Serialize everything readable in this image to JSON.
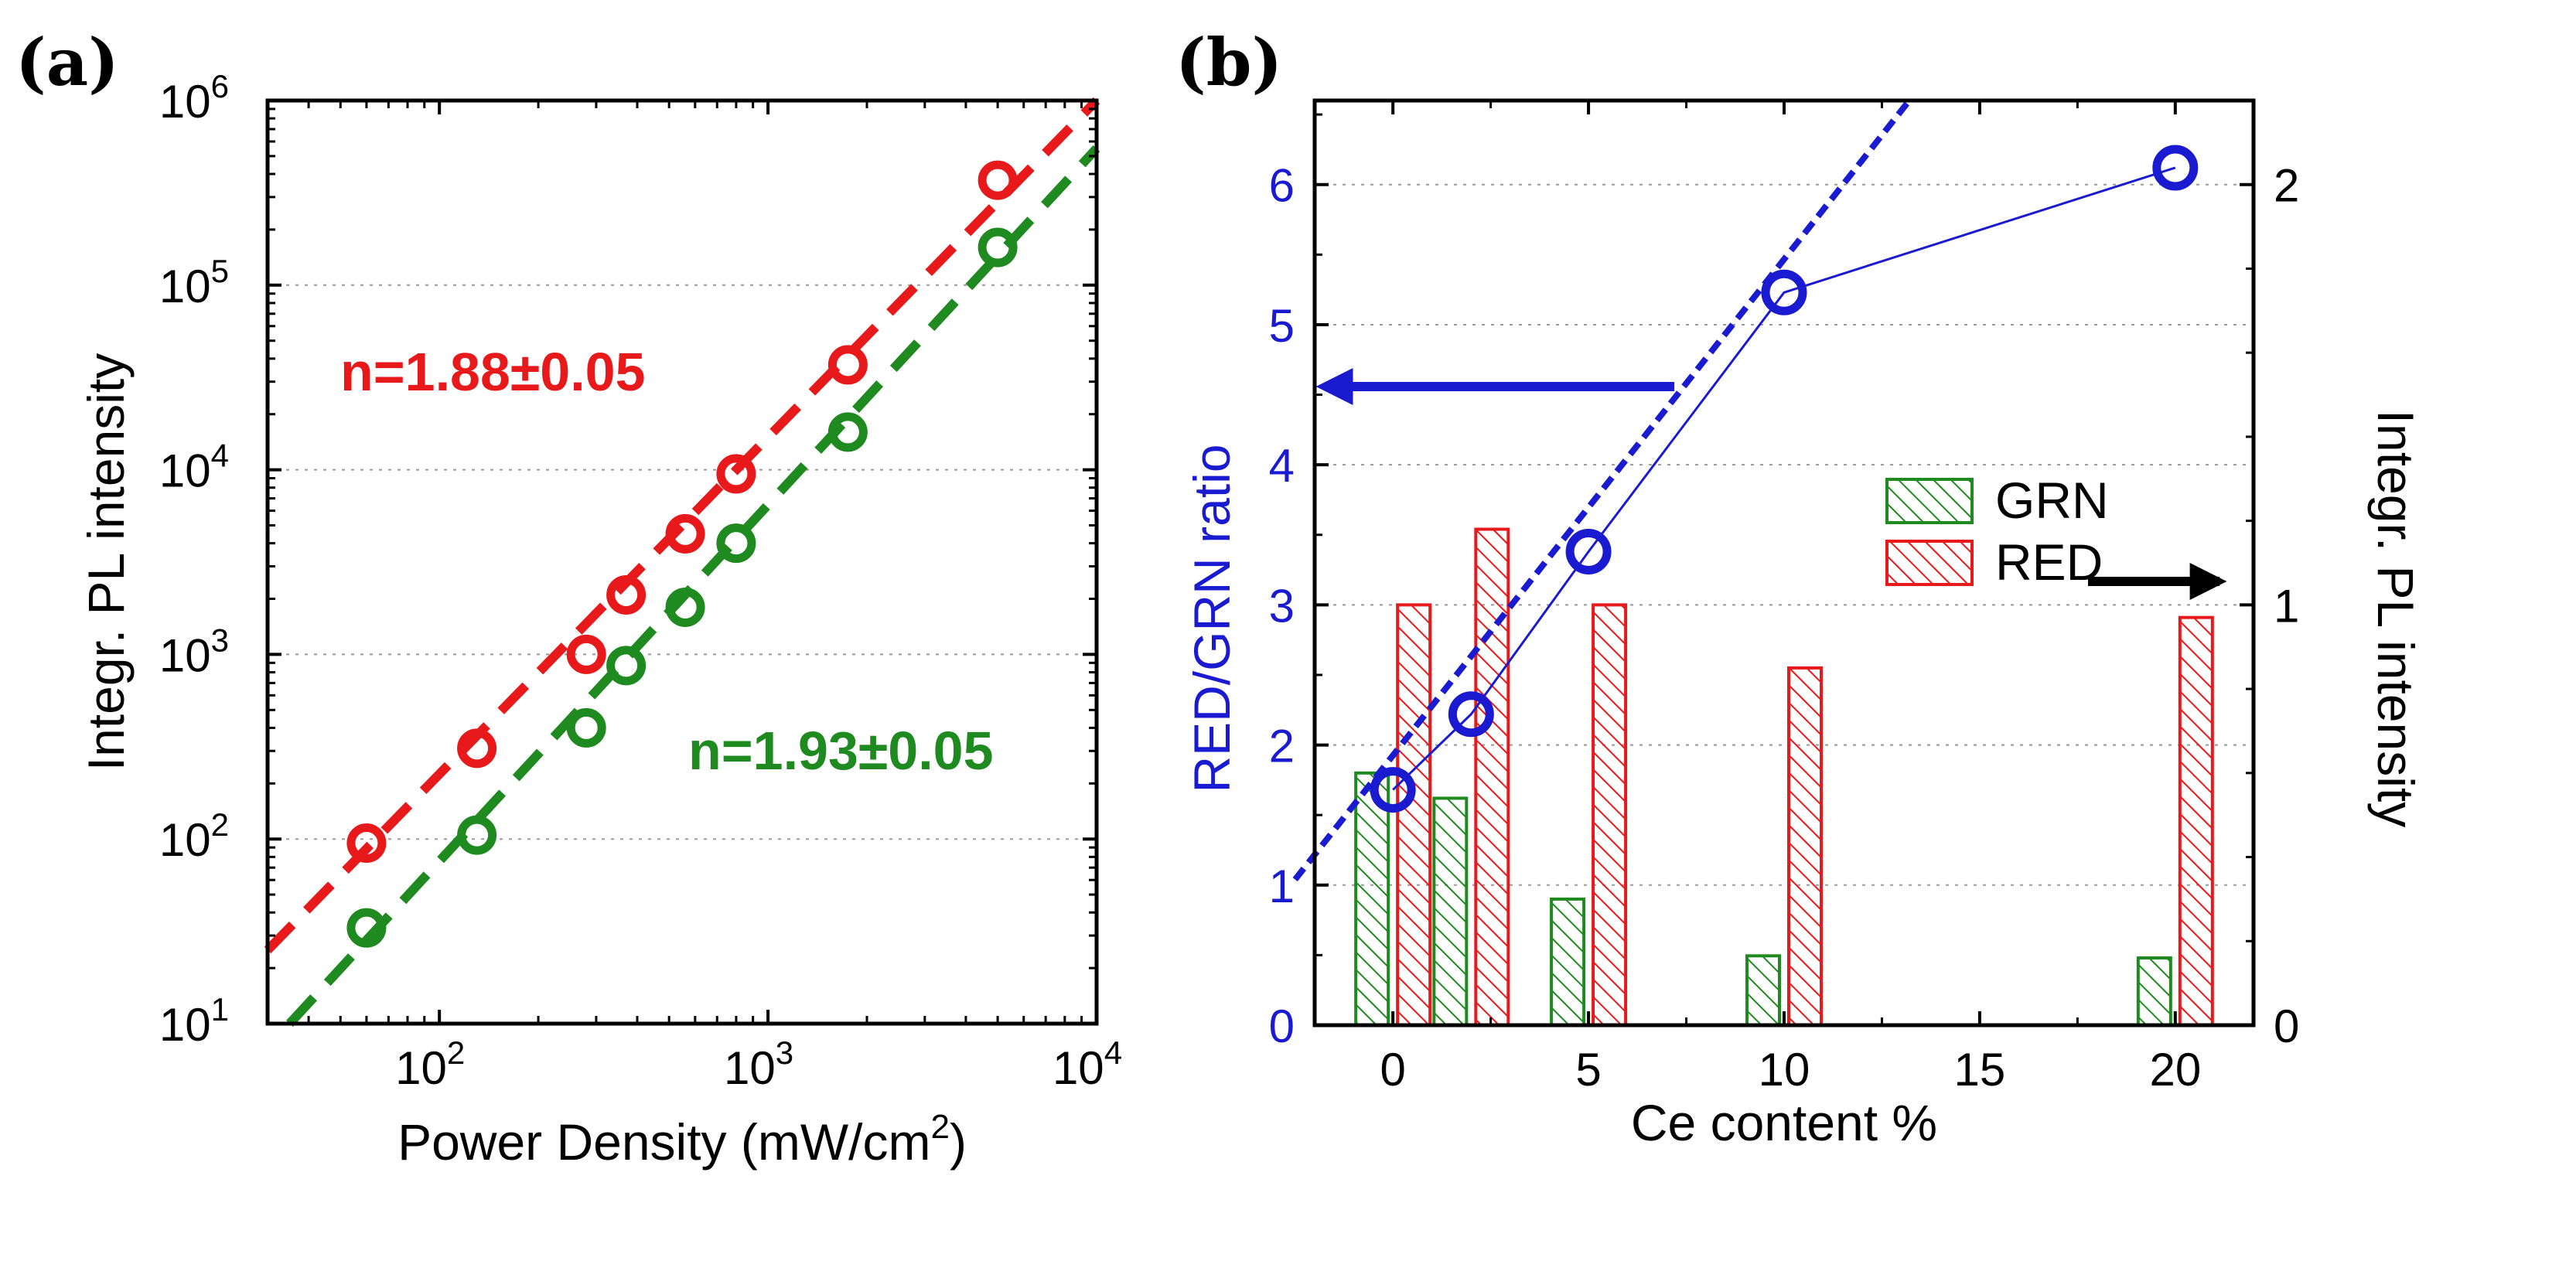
{
  "chart_data": [
    {
      "panel": "(a)",
      "type": "scatter",
      "xscale": "log",
      "yscale": "log",
      "xlabel_main": "Power Density (mW/cm",
      "xlabel_sup": "2",
      "xlabel_end": ")",
      "ylabel": "Integr. PL intensity",
      "xlim": [
        30,
        10000
      ],
      "ylim": [
        10,
        1000000
      ],
      "xticks": [
        {
          "base": "10",
          "exp": "2",
          "value": 100
        },
        {
          "base": "10",
          "exp": "3",
          "value": 1000
        },
        {
          "base": "10",
          "exp": "4",
          "value": 10000
        }
      ],
      "yticks": [
        {
          "base": "10",
          "exp": "1",
          "value": 10
        },
        {
          "base": "10",
          "exp": "2",
          "value": 100
        },
        {
          "base": "10",
          "exp": "3",
          "value": 1000
        },
        {
          "base": "10",
          "exp": "4",
          "value": 10000
        },
        {
          "base": "10",
          "exp": "5",
          "value": 100000
        },
        {
          "base": "10",
          "exp": "6",
          "value": 1000000
        }
      ],
      "grid": "horizontal-dotted",
      "series": [
        {
          "name": "red",
          "color": "#e8191b",
          "x": [
            60,
            130,
            280,
            370,
            560,
            800,
            1750,
            5000
          ],
          "y": [
            95,
            310,
            1000,
            2100,
            4500,
            9500,
            37000,
            370000
          ],
          "fit": {
            "x": [
              30,
              10000
            ],
            "y": [
              25,
              1000000
            ]
          },
          "annotation": "n=1.88±0.05"
        },
        {
          "name": "green",
          "color": "#1f8a1f",
          "x": [
            60,
            130,
            280,
            370,
            560,
            800,
            1750,
            5000
          ],
          "y": [
            33,
            105,
            400,
            870,
            1800,
            4000,
            16000,
            160000
          ],
          "fit": {
            "x": [
              35,
              10000
            ],
            "y": [
              10,
              550000
            ]
          },
          "annotation": "n=1.93±0.05"
        }
      ]
    },
    {
      "panel": "(b)",
      "type": "bar+line",
      "xlabel": "Ce content %",
      "ylabel_left": "RED/GRN ratio",
      "ylabel_right": "Integr. PL intensity",
      "xlim": [
        -2,
        22
      ],
      "ylim_left": [
        0,
        6.6
      ],
      "ylim_right": [
        0,
        2.2
      ],
      "xticks": [
        "0",
        "5",
        "10",
        "15",
        "20"
      ],
      "yticks_left": [
        "0",
        "1",
        "2",
        "3",
        "4",
        "5",
        "6"
      ],
      "yticks_right": [
        "0",
        "1",
        "2"
      ],
      "grid": "horizontal-dotted",
      "categories": [
        0,
        2,
        5,
        10,
        20
      ],
      "bars": [
        {
          "name": "GRN",
          "color": "#1f8a1f",
          "values": [
            0.6,
            0.54,
            0.3,
            0.165,
            0.16
          ]
        },
        {
          "name": "RED",
          "color": "#e8191b",
          "values": [
            1.0,
            1.18,
            1.0,
            0.85,
            0.97
          ]
        }
      ],
      "ratio_line": {
        "name": "RED/GRN ratio",
        "color": "#1a1ad0",
        "x": [
          0,
          2,
          5,
          10,
          20
        ],
        "y": [
          1.68,
          2.22,
          3.38,
          5.23,
          6.12
        ]
      },
      "ratio_fit": {
        "x": [
          -2.5,
          13.2
        ],
        "y": [
          1.04,
          6.6
        ]
      },
      "legend": [
        "GRN",
        "RED"
      ]
    }
  ]
}
